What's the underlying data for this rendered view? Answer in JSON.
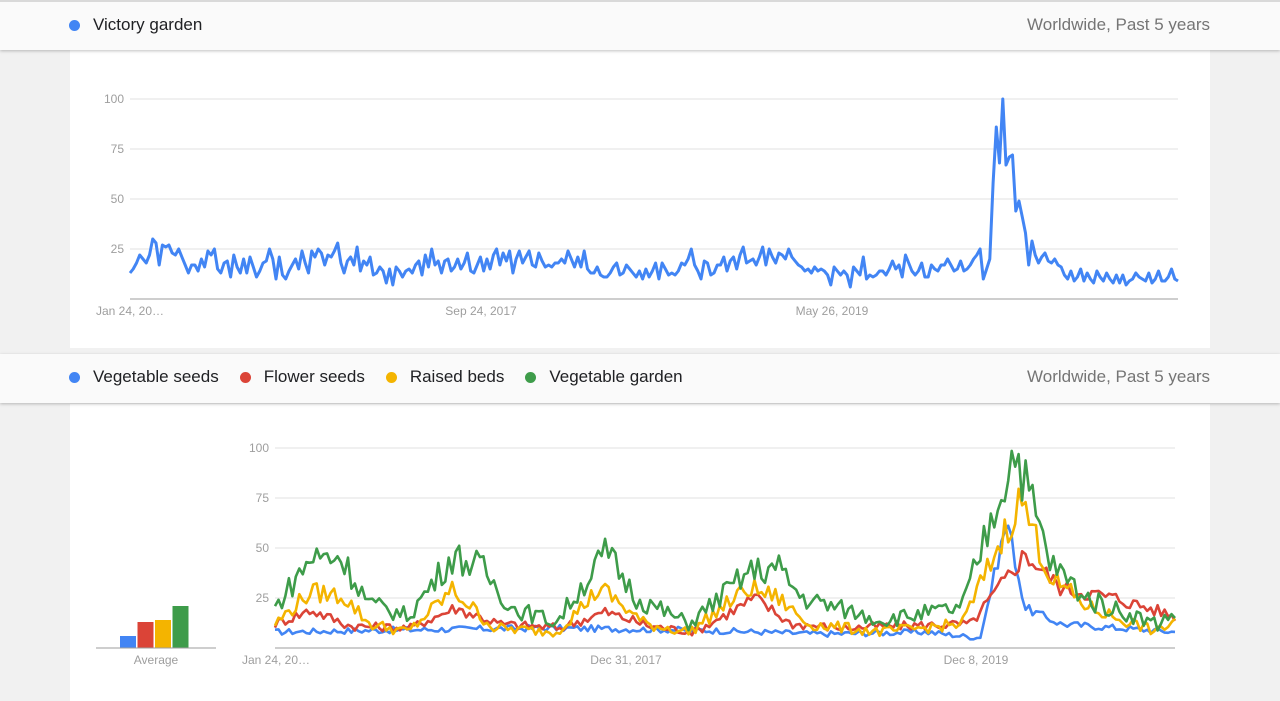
{
  "colors": {
    "blue": "#4285f4",
    "red": "#db4437",
    "yellow": "#f4b400",
    "green": "#0f9d58",
    "green_line": "#3e9c4a",
    "grid": "#e0e0e0",
    "axis_text": "#9e9e9e"
  },
  "panel1": {
    "legend": [
      {
        "label": "Victory garden",
        "color": "#4285f4"
      }
    ],
    "region": "Worldwide, Past 5 years"
  },
  "panel2": {
    "legend": [
      {
        "label": "Vegetable seeds",
        "color": "#4285f4"
      },
      {
        "label": "Flower seeds",
        "color": "#db4437"
      },
      {
        "label": "Raised beds",
        "color": "#f4b400"
      },
      {
        "label": "Vegetable garden",
        "color": "#3e9c4a"
      }
    ],
    "region": "Worldwide, Past 5 years",
    "average_label": "Average"
  },
  "chart_data": [
    {
      "type": "line",
      "xlabels": [
        "Jan 24, 20…",
        "Sep 24, 2017",
        "May 26, 2019"
      ],
      "yticks": [
        25,
        50,
        75,
        100
      ],
      "ylim": [
        0,
        100
      ],
      "grid": true,
      "series": [
        {
          "name": "Victory garden",
          "color": "#4285f4",
          "values": [
            13,
            15,
            18,
            22,
            20,
            18,
            22,
            30,
            28,
            17,
            26,
            25,
            27,
            23,
            22,
            25,
            24,
            20,
            17,
            13,
            17,
            16,
            15,
            20,
            16,
            24,
            22,
            25,
            15,
            13,
            19,
            18,
            11,
            22,
            17,
            14,
            19,
            13,
            22,
            16,
            11,
            14,
            17,
            18,
            25,
            20,
            10,
            22,
            15,
            11,
            10,
            14,
            17,
            20,
            15,
            24,
            18,
            13,
            24,
            22,
            25,
            24,
            17,
            23,
            20,
            21,
            23,
            29,
            19,
            13,
            18,
            20,
            17,
            26,
            14,
            19,
            17,
            22,
            12,
            12,
            16,
            15,
            9,
            14,
            7,
            16,
            15,
            11,
            14,
            15,
            13,
            17,
            19,
            12,
            22,
            16,
            25,
            17,
            19,
            13,
            19,
            20,
            14,
            16,
            20,
            16,
            18,
            23,
            14,
            13,
            16,
            18,
            22,
            14,
            21,
            15,
            22,
            25,
            17,
            23,
            19,
            24,
            13,
            20,
            24,
            18,
            21,
            24,
            17,
            16,
            23,
            19,
            16,
            17,
            16,
            18,
            18,
            20,
            18,
            24,
            20,
            16,
            21,
            16,
            24,
            15,
            13,
            13,
            17,
            14,
            16,
            12,
            11,
            11,
            13,
            16,
            18,
            12,
            13,
            17,
            15,
            13,
            12,
            11,
            14,
            10,
            15,
            11,
            14,
            18,
            10,
            18,
            15,
            12,
            13,
            12,
            14,
            18,
            16,
            19,
            25,
            17,
            14,
            10,
            19,
            19,
            13,
            12,
            14,
            17,
            17,
            21,
            14,
            19,
            21,
            15,
            22,
            26,
            18,
            18,
            20,
            17,
            21,
            26,
            17,
            25,
            21,
            18,
            23,
            22,
            20,
            25,
            21,
            20,
            17,
            17,
            16,
            14,
            15,
            13,
            16,
            14,
            15,
            15,
            14,
            12,
            7,
            16,
            14,
            12,
            14,
            12,
            6,
            16,
            14,
            12,
            21,
            10,
            12,
            11,
            11,
            14,
            14,
            12,
            15,
            19,
            15,
            17,
            11,
            22,
            18,
            14,
            12,
            14,
            18,
            11,
            11,
            17,
            15,
            14,
            17,
            17,
            20,
            17,
            14,
            15,
            19,
            14,
            15,
            17,
            20,
            23,
            21,
            25,
            10,
            15,
            20,
            86,
            63,
            100,
            67,
            70,
            71,
            68,
            45,
            48,
            42,
            36,
            31,
            18,
            22,
            28,
            21,
            17,
            19,
            21,
            17,
            18,
            19,
            17,
            16,
            13,
            10,
            13,
            12,
            10,
            15,
            8,
            11,
            15,
            9,
            12,
            10,
            8,
            14,
            12,
            11,
            9,
            12,
            10,
            8,
            11,
            8,
            12,
            7,
            9,
            10,
            12,
            11,
            10,
            9,
            12,
            13,
            8,
            10,
            14,
            9,
            9,
            11,
            12,
            15,
            10,
            9
          ],
          "line_values": [
            13,
            15,
            18,
            22,
            20,
            18,
            22,
            30,
            28,
            17,
            27,
            26,
            27,
            23,
            22,
            25,
            21,
            17,
            13,
            17,
            17,
            14,
            20,
            16,
            24,
            22,
            25,
            15,
            13,
            18,
            19,
            11,
            22,
            16,
            13,
            20,
            13,
            21,
            16,
            11,
            14,
            18,
            19,
            25,
            20,
            10,
            21,
            12,
            10,
            14,
            17,
            20,
            15,
            24,
            18,
            13,
            24,
            21,
            25,
            23,
            17,
            22,
            21,
            24,
            28,
            18,
            13,
            19,
            21,
            17,
            26,
            14,
            19,
            17,
            21,
            12,
            13,
            16,
            14,
            8,
            15,
            7,
            16,
            14,
            11,
            14,
            15,
            13,
            17,
            19,
            12,
            22,
            16,
            25,
            17,
            19,
            13,
            19,
            20,
            14,
            16,
            20,
            15,
            18,
            23,
            14,
            13,
            17,
            21,
            14,
            20,
            15,
            22,
            25,
            17,
            23,
            19,
            24,
            13,
            20,
            24,
            18,
            21,
            24,
            17,
            16,
            23,
            19,
            16,
            17,
            16,
            18,
            18,
            20,
            18,
            24,
            20,
            16,
            21,
            16,
            24,
            15,
            13,
            13,
            16,
            12,
            11,
            11,
            13,
            16,
            18,
            12,
            13,
            17,
            15,
            13,
            11,
            14,
            10,
            15,
            11,
            14,
            18,
            10,
            18,
            15,
            12,
            13,
            12,
            14,
            18,
            17,
            20,
            25,
            17,
            14,
            10,
            19,
            18,
            12,
            13,
            17,
            17,
            21,
            14,
            19,
            21,
            15,
            22,
            26,
            18,
            19,
            20,
            17,
            21,
            26,
            17,
            25,
            21,
            18,
            23,
            22,
            20,
            25,
            21,
            19,
            17,
            16,
            14,
            15,
            13,
            16,
            14,
            15,
            14,
            12,
            7,
            16,
            14,
            12,
            14,
            12,
            6,
            16,
            14,
            12,
            21,
            10,
            12,
            11,
            12,
            14,
            14,
            12,
            15,
            19,
            15,
            17,
            11,
            22,
            18,
            14,
            12,
            14,
            18,
            11,
            11,
            17,
            15,
            14,
            17,
            17,
            20,
            17,
            14,
            15,
            19,
            14,
            15,
            17,
            20,
            22,
            25,
            10,
            15,
            20,
            58,
            86,
            68,
            100,
            67,
            71,
            72,
            44,
            49,
            41,
            33,
            17,
            29,
            22,
            18,
            21,
            23,
            19,
            18,
            20,
            17,
            16,
            12,
            10,
            14,
            9,
            11,
            15,
            9,
            13,
            10,
            8,
            14,
            11,
            9,
            13,
            10,
            8,
            12,
            8,
            12,
            7,
            9,
            10,
            13,
            11,
            10,
            9,
            13,
            8,
            10,
            14,
            9,
            9,
            11,
            15,
            10,
            9
          ]
        }
      ]
    },
    {
      "type": "line",
      "xlabels": [
        "Jan 24, 20…",
        "Dec 31, 2017",
        "Dec 8, 2019"
      ],
      "yticks": [
        25,
        50,
        75,
        100
      ],
      "ylim": [
        0,
        100
      ],
      "grid": true,
      "series": [
        {
          "name": "Vegetable seeds",
          "color": "#4285f4",
          "peaks": [
            [
              0,
              8
            ],
            [
              40,
              9
            ],
            [
              90,
              10
            ],
            [
              140,
              9
            ],
            [
              183,
              7
            ],
            [
              217,
              8
            ],
            [
              235,
              5
            ],
            [
              244,
              64
            ],
            [
              250,
              20
            ],
            [
              262,
              12
            ],
            [
              300,
              8
            ]
          ],
          "noise": 1.5,
          "base": 7
        },
        {
          "name": "Flower seeds",
          "color": "#db4437",
          "peaks": [
            [
              0,
              12
            ],
            [
              12,
              19
            ],
            [
              25,
              11
            ],
            [
              45,
              10
            ],
            [
              60,
              20
            ],
            [
              75,
              12
            ],
            [
              95,
              10
            ],
            [
              110,
              18
            ],
            [
              125,
              11
            ],
            [
              140,
              8
            ],
            [
              160,
              25
            ],
            [
              172,
              12
            ],
            [
              190,
              10
            ],
            [
              205,
              11
            ],
            [
              232,
              12
            ],
            [
              250,
              47
            ],
            [
              262,
              30
            ],
            [
              280,
              25
            ],
            [
              300,
              16
            ]
          ],
          "noise": 2,
          "base": 12
        },
        {
          "name": "Raised beds",
          "color": "#f4b400",
          "peaks": [
            [
              0,
              12
            ],
            [
              12,
              28
            ],
            [
              23,
              26
            ],
            [
              32,
              12
            ],
            [
              45,
              8
            ],
            [
              60,
              29
            ],
            [
              74,
              10
            ],
            [
              95,
              8
            ],
            [
              110,
              30
            ],
            [
              125,
              12
            ],
            [
              140,
              8
            ],
            [
              160,
              30
            ],
            [
              170,
              25
            ],
            [
              180,
              12
            ],
            [
              205,
              8
            ],
            [
              232,
              12
            ],
            [
              252,
              75
            ],
            [
              262,
              35
            ],
            [
              275,
              20
            ],
            [
              298,
              8
            ],
            [
              304,
              14
            ]
          ],
          "noise": 2.5,
          "base": 10
        },
        {
          "name": "Vegetable garden",
          "color": "#3e9c4a",
          "peaks": [
            [
              0,
              20
            ],
            [
              12,
              45
            ],
            [
              22,
              46
            ],
            [
              32,
              22
            ],
            [
              45,
              16
            ],
            [
              60,
              46
            ],
            [
              70,
              40
            ],
            [
              80,
              20
            ],
            [
              95,
              13
            ],
            [
              112,
              48
            ],
            [
              122,
              25
            ],
            [
              140,
              12
            ],
            [
              160,
              38
            ],
            [
              170,
              40
            ],
            [
              178,
              25
            ],
            [
              205,
              14
            ],
            [
              232,
              20
            ],
            [
              250,
              100
            ],
            [
              262,
              42
            ],
            [
              275,
              24
            ],
            [
              298,
              12
            ],
            [
              304,
              18
            ]
          ],
          "noise": 3,
          "base": 18
        }
      ],
      "averages": [
        {
          "name": "Vegetable seeds",
          "value": 6,
          "color": "#4285f4"
        },
        {
          "name": "Flower seeds",
          "value": 13,
          "color": "#db4437"
        },
        {
          "name": "Raised beds",
          "value": 14,
          "color": "#f4b400"
        },
        {
          "name": "Vegetable garden",
          "value": 21,
          "color": "#3e9c4a"
        }
      ]
    }
  ]
}
